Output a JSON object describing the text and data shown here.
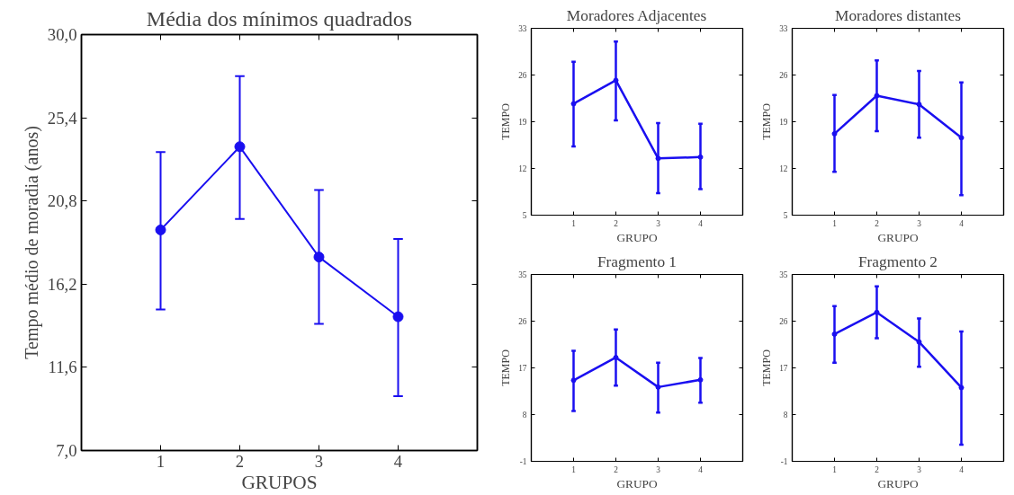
{
  "chart_data": [
    {
      "type": "line",
      "title": "Média dos mínimos quadrados",
      "xlabel": "GRUPOS",
      "ylabel": "Tempo médio de moradia (anos)",
      "x": [
        1,
        2,
        3,
        4
      ],
      "xlim": [
        0,
        5
      ],
      "xticks": [
        1,
        2,
        3,
        4
      ],
      "ylim": [
        7,
        30
      ],
      "yticks": [
        {
          "value": 7,
          "label": "7,0"
        },
        {
          "value": 11.6,
          "label": "11,6"
        },
        {
          "value": 16.2,
          "label": "16,2"
        },
        {
          "value": 20.8,
          "label": "20,8"
        },
        {
          "value": 25.4,
          "label": "25,4"
        },
        {
          "value": 30,
          "label": "30,0"
        }
      ],
      "marker": "circle",
      "grid": false,
      "series": [
        {
          "color": "#1a0ff0",
          "values": [
            19.2,
            23.8,
            17.7,
            14.4
          ],
          "errors": [
            [
              14.8,
              23.5
            ],
            [
              19.8,
              27.7
            ],
            [
              14.0,
              21.4
            ],
            [
              10.0,
              18.7
            ]
          ]
        }
      ]
    },
    {
      "type": "line",
      "title": "Moradores Adjacentes",
      "xlabel": "GRUPO",
      "ylabel": "TEMPO",
      "x": [
        1,
        2,
        3,
        4
      ],
      "xlim": [
        0,
        5
      ],
      "xticks": [
        1,
        2,
        3,
        4
      ],
      "ylim": [
        5,
        33
      ],
      "yticks": [
        5,
        12,
        19,
        26,
        33
      ],
      "marker": "circle",
      "grid": false,
      "series": [
        {
          "color": "#1a0ff0",
          "values": [
            21.7,
            25.2,
            13.5,
            13.7
          ],
          "errors": [
            [
              15.3,
              28.0
            ],
            [
              19.2,
              31.0
            ],
            [
              8.3,
              18.8
            ],
            [
              8.9,
              18.7
            ]
          ]
        }
      ]
    },
    {
      "type": "line",
      "title": "Moradores distantes",
      "xlabel": "GRUPO",
      "ylabel": "TEMPO",
      "x": [
        1,
        2,
        3,
        4
      ],
      "xlim": [
        0,
        5
      ],
      "xticks": [
        1,
        2,
        3,
        4
      ],
      "ylim": [
        5,
        33
      ],
      "yticks": [
        5,
        12,
        19,
        26,
        33
      ],
      "marker": "circle",
      "grid": false,
      "series": [
        {
          "color": "#1a0ff0",
          "values": [
            17.2,
            22.9,
            21.6,
            16.6
          ],
          "errors": [
            [
              11.5,
              23.0
            ],
            [
              17.6,
              28.2
            ],
            [
              16.6,
              26.6
            ],
            [
              8.0,
              24.9
            ]
          ]
        }
      ]
    },
    {
      "type": "line",
      "title": "Fragmento 1",
      "xlabel": "GRUPO",
      "ylabel": "TEMPO",
      "x": [
        1,
        2,
        3,
        4
      ],
      "xlim": [
        0,
        5
      ],
      "xticks": [
        1,
        2,
        3,
        4
      ],
      "ylim": [
        -1,
        35
      ],
      "yticks": [
        -1,
        8,
        17,
        26,
        35
      ],
      "marker": "circle",
      "grid": false,
      "series": [
        {
          "color": "#1a0ff0",
          "values": [
            14.6,
            19.0,
            13.3,
            14.7
          ],
          "errors": [
            [
              8.7,
              20.3
            ],
            [
              13.6,
              24.4
            ],
            [
              8.4,
              18.0
            ],
            [
              10.3,
              18.9
            ]
          ]
        }
      ]
    },
    {
      "type": "line",
      "title": "Fragmento 2",
      "xlabel": "GRUPO",
      "ylabel": "TEMPO",
      "x": [
        1,
        2,
        3,
        4
      ],
      "xlim": [
        0,
        5
      ],
      "xticks": [
        1,
        2,
        3,
        4
      ],
      "ylim": [
        -1,
        35
      ],
      "yticks": [
        -1,
        8,
        17,
        26,
        35
      ],
      "marker": "circle",
      "grid": false,
      "series": [
        {
          "color": "#1a0ff0",
          "values": [
            23.5,
            27.7,
            22.0,
            13.2
          ],
          "errors": [
            [
              18.0,
              28.9
            ],
            [
              22.7,
              32.7
            ],
            [
              17.2,
              26.5
            ],
            [
              2.2,
              24.0
            ]
          ]
        }
      ]
    }
  ]
}
